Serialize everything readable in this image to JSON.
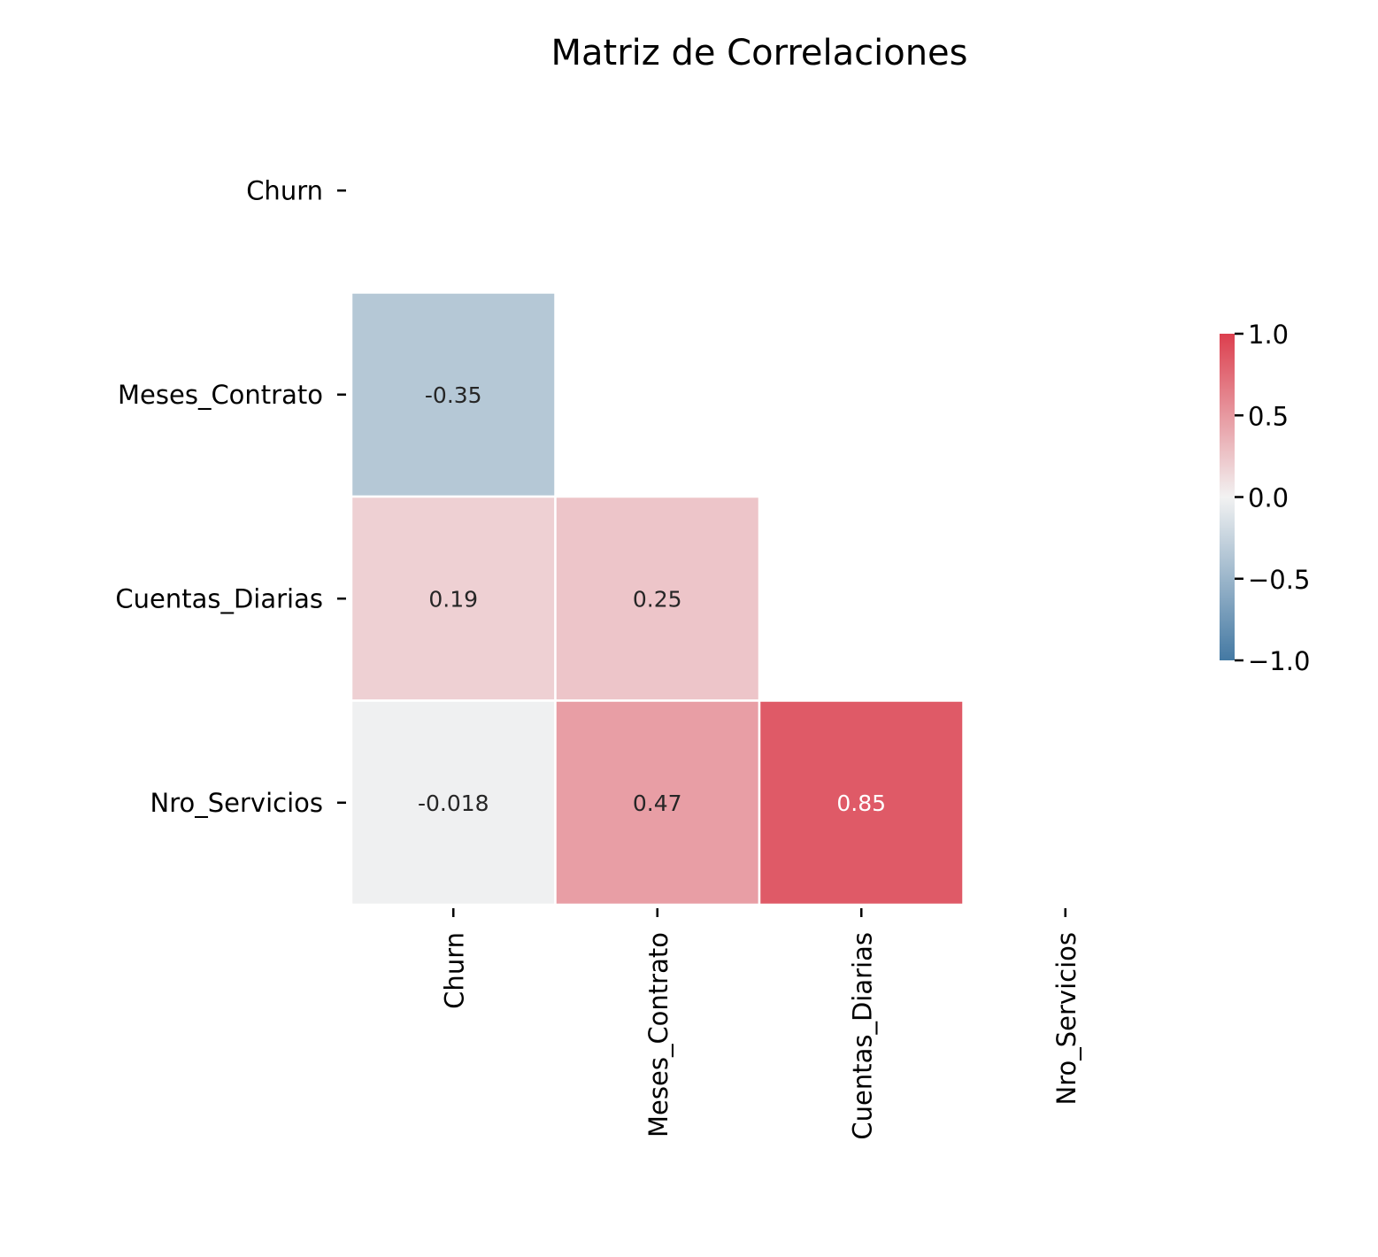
{
  "chart_data": {
    "type": "heatmap",
    "title": "Matriz de Correlaciones",
    "x_categories": [
      "Churn",
      "Meses_Contrato",
      "Cuentas_Diarias",
      "Nro_Servicios"
    ],
    "y_categories": [
      "Churn",
      "Meses_Contrato",
      "Cuentas_Diarias",
      "Nro_Servicios"
    ],
    "mask": "upper triangle including diagonal",
    "cells": [
      {
        "row": 1,
        "col": 0,
        "value": -0.35,
        "label": "-0.35"
      },
      {
        "row": 2,
        "col": 0,
        "value": 0.19,
        "label": "0.19"
      },
      {
        "row": 2,
        "col": 1,
        "value": 0.25,
        "label": "0.25"
      },
      {
        "row": 3,
        "col": 0,
        "value": -0.018,
        "label": "-0.018"
      },
      {
        "row": 3,
        "col": 1,
        "value": 0.47,
        "label": "0.47"
      },
      {
        "row": 3,
        "col": 2,
        "value": 0.85,
        "label": "0.85"
      }
    ],
    "colorbar": {
      "range": [
        -1.0,
        1.0
      ],
      "ticks": [
        1.0,
        0.5,
        0.0,
        -0.5,
        -1.0
      ],
      "tick_labels": [
        "1.0",
        "0.5",
        "0.0",
        "−0.5",
        "−1.0"
      ],
      "colors": {
        "negative": "#4479a3",
        "zero": "#f2f2f2",
        "positive": "#dc3f4e"
      }
    },
    "grid": false
  }
}
